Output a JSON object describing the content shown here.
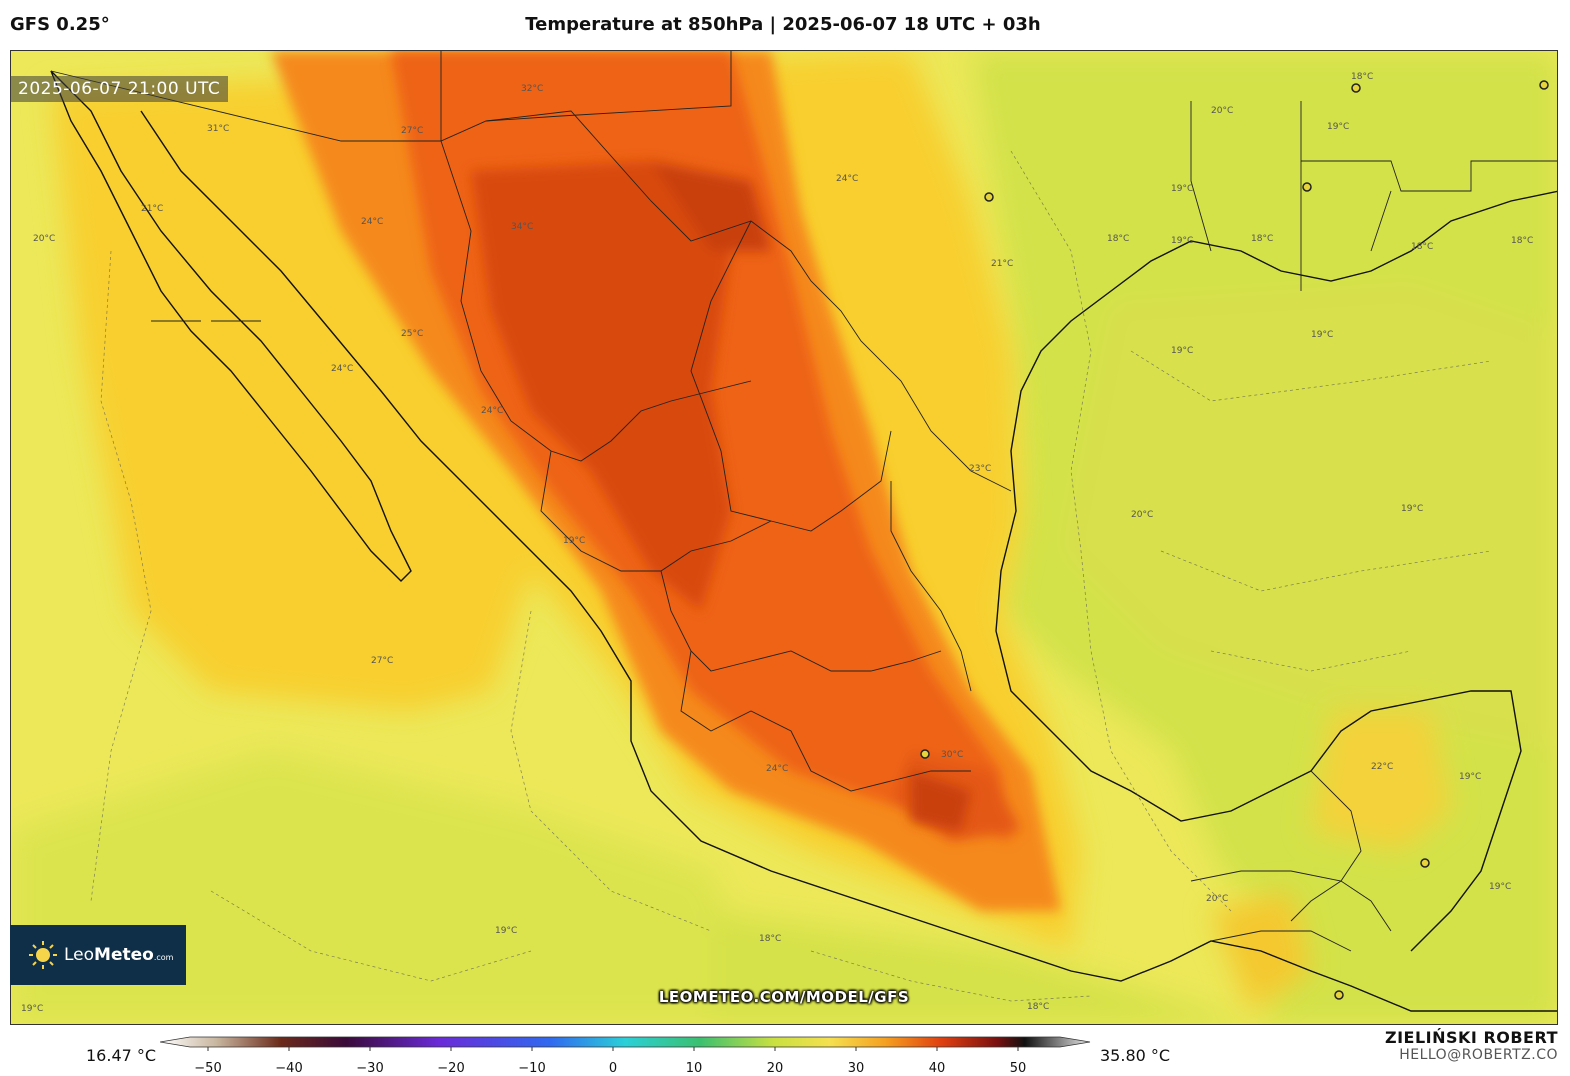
{
  "header": {
    "model": "GFS 0.25°",
    "title": "Temperature at 850hPa | 2025-06-07 18 UTC + 03h"
  },
  "map": {
    "valid_time": "2025-06-07 21:00 UTC",
    "url": "LEOMETEO.COM/MODEL/GFS",
    "logo": {
      "name": "Leo",
      "bold": "Meteo",
      "suffix": ".com"
    },
    "contour_labels": [
      "18°C",
      "19°C",
      "20°C",
      "21°C",
      "22°C",
      "23°C",
      "24°C",
      "25°C",
      "27°C",
      "30°C",
      "31°C",
      "32°C",
      "34°C"
    ]
  },
  "colorbar": {
    "min_label": "16.47 °C",
    "max_label": "35.80 °C",
    "ticks": [
      "−50",
      "−40",
      "−30",
      "−20",
      "−10",
      "0",
      "10",
      "20",
      "30",
      "40",
      "50"
    ]
  },
  "author": {
    "name": "ZIELIŃSKI ROBERT",
    "email": "HELLO@ROBERTZ.CO"
  },
  "colors": {
    "cool": "#cfe04a",
    "mild": "#f2ea55",
    "warm": "#f7c226",
    "hot": "#f2701c",
    "very_hot": "#d84c10",
    "extreme": "#b8350b"
  }
}
